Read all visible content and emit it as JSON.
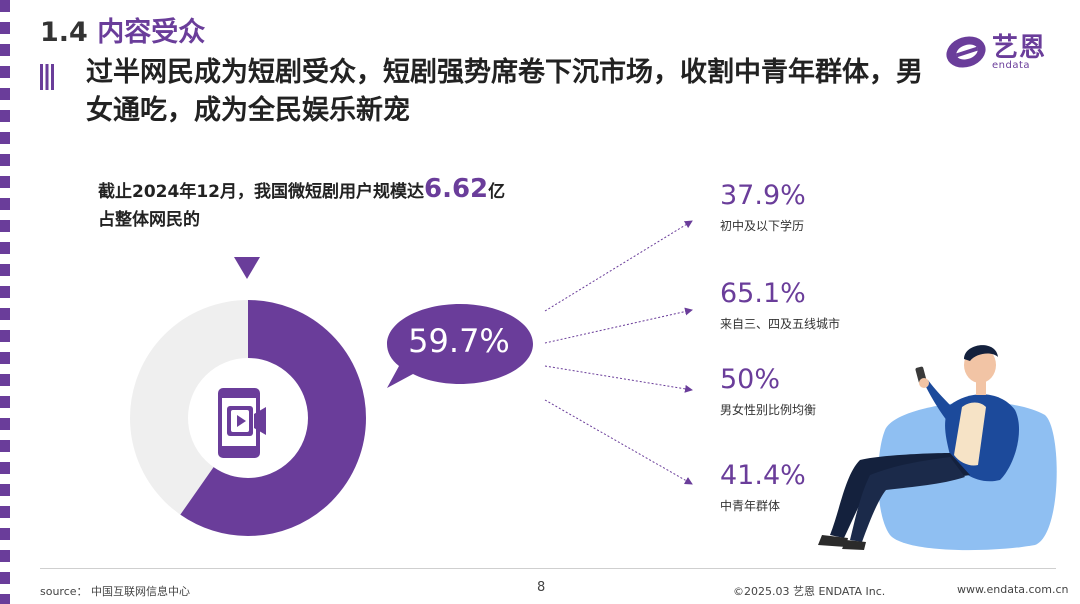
{
  "section": {
    "number": "1.4",
    "title": "内容受众"
  },
  "brand": {
    "name_cn": "艺恩",
    "name_en": "endata"
  },
  "headline": "过半网民成为短剧受众，短剧强势席卷下沉市场，收割中青年群体，男女通吃，成为全民娱乐新宠",
  "intro": {
    "line1_prefix": "截止2024年12月，我国微短剧用户规模达",
    "line1_number": "6.62",
    "line1_suffix": "亿",
    "line2": "占整体网民的"
  },
  "donut_chart": {
    "share_percent": 59.7,
    "bubble_label": "59.7%"
  },
  "stats": [
    {
      "value": "37.9%",
      "label": "初中及以下学历"
    },
    {
      "value": "65.1%",
      "label": "来自三、四及五线城市"
    },
    {
      "value": "50%",
      "label": "男女性别比例均衡"
    },
    {
      "value": "41.4%",
      "label": "中青年群体"
    }
  ],
  "footer": {
    "source": "source： 中国互联网信息中心",
    "page": "8",
    "copyright": "©2025.03  艺恩 ENDATA Inc.",
    "url": "www.endata.com.cn"
  },
  "colors": {
    "accent": "#6a3d9a",
    "donut_rest": "#efefef",
    "sofa": "#8fbff2",
    "jacket": "#1c4a9b"
  },
  "icons": [
    "phone-video-icon",
    "down-triangle-icon",
    "speech-bubble",
    "person-on-beanbag-illustration"
  ]
}
